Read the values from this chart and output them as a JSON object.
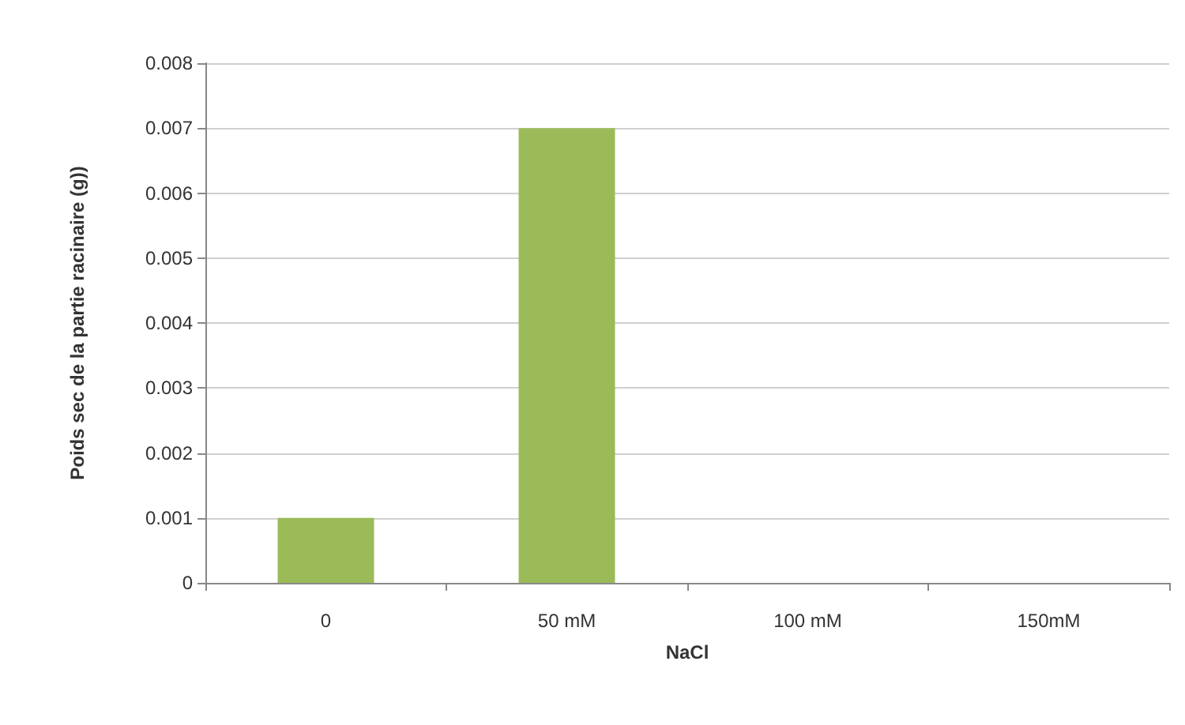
{
  "chart_data": {
    "type": "bar",
    "xlabel": "NaCl",
    "ylabel": "Poids sec de la partie racinaire (g))",
    "categories": [
      "0",
      "50 mM",
      "100 mM",
      "150mM"
    ],
    "values": [
      0.001,
      0.007,
      0,
      0
    ],
    "color": "#9bbb59",
    "ylim": [
      0,
      0.008
    ],
    "yticks": [
      0,
      0.001,
      0.002,
      0.003,
      0.004,
      0.005,
      0.006,
      0.007,
      0.008
    ],
    "grid": "y"
  }
}
